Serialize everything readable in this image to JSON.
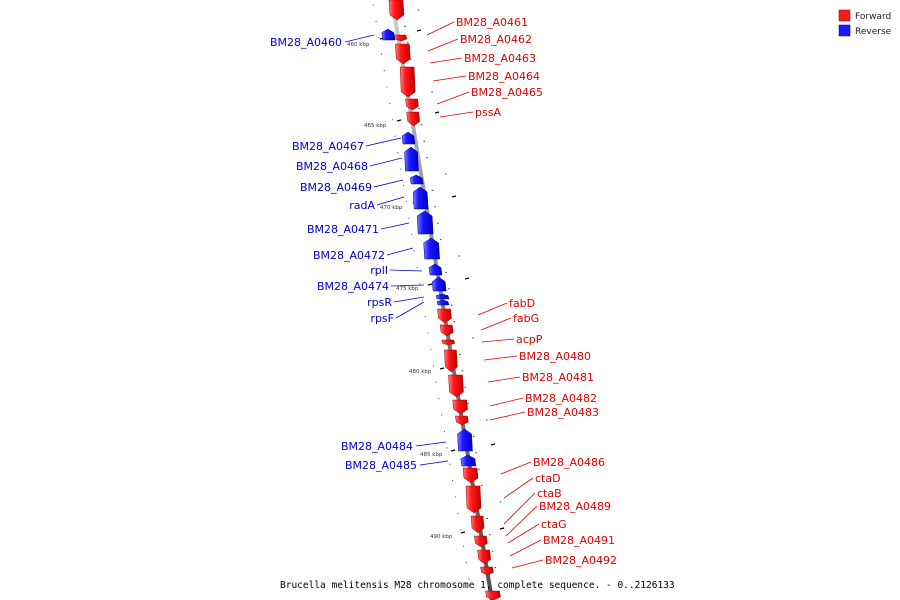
{
  "legend": {
    "forward": {
      "label": "Forward",
      "color": "#ff1a1a"
    },
    "reverse": {
      "label": "Reverse",
      "color": "#1a1aff"
    }
  },
  "caption": "Brucella melitensis M28 chromosome 1, complete sequence. - 0..2126133",
  "scale_labels": [
    "460 kbp",
    "465 kbp",
    "470 kbp",
    "475 kbp",
    "480 kbp",
    "485 kbp",
    "490 kbp"
  ],
  "forward_genes": [
    {
      "name": "BM28_A0461"
    },
    {
      "name": "BM28_A0462"
    },
    {
      "name": "BM28_A0463"
    },
    {
      "name": "BM28_A0464"
    },
    {
      "name": "BM28_A0465"
    },
    {
      "name": "pssA"
    },
    {
      "name": "fabD"
    },
    {
      "name": "fabG"
    },
    {
      "name": "acpP"
    },
    {
      "name": "BM28_A0480"
    },
    {
      "name": "BM28_A0481"
    },
    {
      "name": "BM28_A0482"
    },
    {
      "name": "BM28_A0483"
    },
    {
      "name": "BM28_A0486"
    },
    {
      "name": "ctaD"
    },
    {
      "name": "ctaB"
    },
    {
      "name": "BM28_A0489"
    },
    {
      "name": "ctaG"
    },
    {
      "name": "BM28_A0491"
    },
    {
      "name": "BM28_A0492"
    }
  ],
  "reverse_genes": [
    {
      "name": "BM28_A0460"
    },
    {
      "name": "BM28_A0467"
    },
    {
      "name": "BM28_A0468"
    },
    {
      "name": "BM28_A0469"
    },
    {
      "name": "radA"
    },
    {
      "name": "BM28_A0471"
    },
    {
      "name": "BM28_A0472"
    },
    {
      "name": "rplI"
    },
    {
      "name": "BM28_A0474"
    },
    {
      "name": "rpsR"
    },
    {
      "name": "rpsF"
    },
    {
      "name": "BM28_A0484"
    },
    {
      "name": "BM28_A0485"
    }
  ]
}
